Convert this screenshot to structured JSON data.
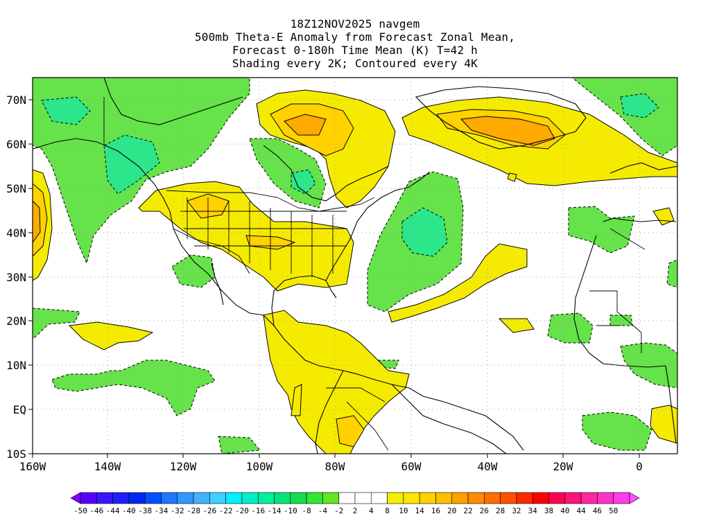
{
  "header": {
    "line1": "18Z12NOV2025 navgem",
    "line2": "500mb Theta-E Anomaly from Forecast Zonal Mean,",
    "line3": "Forecast 0-180h Time Mean (K) T=42 h",
    "line4": "Shading every 2K; Contoured every 4K"
  },
  "axes": {
    "lon_labels": [
      "160W",
      "140W",
      "120W",
      "100W",
      "80W",
      "60W",
      "40W",
      "20W",
      "0"
    ],
    "lat_labels": [
      "70N",
      "60N",
      "50N",
      "40N",
      "30N",
      "20N",
      "10N",
      "EQ",
      "10S"
    ]
  },
  "map": {
    "lon_range": [
      -160,
      10
    ],
    "lat_range": [
      -10,
      75
    ],
    "variable": "500mb Theta-E Anomaly",
    "units": "K"
  },
  "colorbar": {
    "labels": [
      "-50",
      "-46",
      "-44",
      "-40",
      "-38",
      "-34",
      "-32",
      "-28",
      "-26",
      "-22",
      "-20",
      "-16",
      "-14",
      "-10",
      "-8",
      "-4",
      "-2",
      "2",
      "4",
      "8",
      "10",
      "14",
      "16",
      "20",
      "22",
      "26",
      "28",
      "32",
      "34",
      "38",
      "40",
      "44",
      "46",
      "50"
    ],
    "colors": [
      "#8000ff",
      "#5a00ff",
      "#3c14ff",
      "#1e1eff",
      "#0028f0",
      "#0050ff",
      "#1e78ff",
      "#3296ff",
      "#40b4ff",
      "#40d2ff",
      "#00f0ff",
      "#00f0c8",
      "#00f0a0",
      "#00e678",
      "#14dc50",
      "#32e632",
      "#64e61e",
      "#ffffff",
      "#ffffff",
      "#ffffff",
      "#f0f000",
      "#ffe600",
      "#ffd200",
      "#ffbe00",
      "#ffa000",
      "#ff8c00",
      "#ff6e00",
      "#ff5000",
      "#ff2800",
      "#ff0000",
      "#ff0050",
      "#ff1478",
      "#ff28a0",
      "#ff32c8",
      "#ff3ce6",
      "#ff50ff"
    ]
  },
  "colors": {
    "positive_fill": "#f5eb00",
    "positive_strong": "#ffd200",
    "positive_stronger": "#ffaa00",
    "negative_fill": "#66e24a",
    "negative_strong": "#2ce68c",
    "coast": "#000000",
    "grid": "#aaaaaa"
  }
}
